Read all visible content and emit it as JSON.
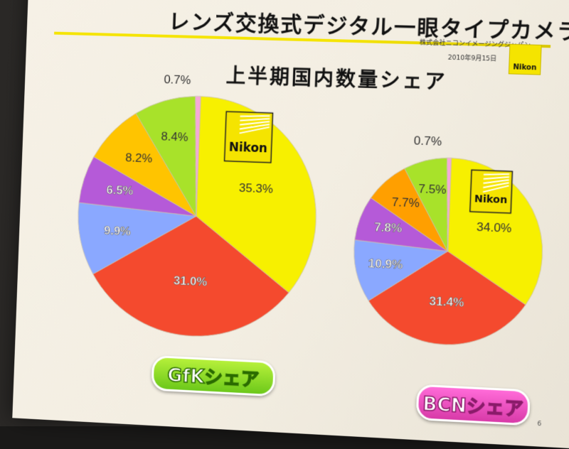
{
  "slide": {
    "title_line1": "レンズ交換式デジタル一眼タイプカメラ",
    "title_line2": "上半期国内数量シェア",
    "company": "株式会社ニコンイメージングジャパン",
    "date": "2010年9月15日",
    "corner_logo_text": "Nikon",
    "page_number": "6"
  },
  "colors": {
    "nikon": "#f7f000",
    "red": "#f44a2e",
    "blue": "#8aa8ff",
    "purple": "#b55ad8",
    "orange": "#ffc400",
    "orange_bcn": "#ff9f00",
    "green": "#a8e22a",
    "pink": "#f7a8d8"
  },
  "chart_data": [
    {
      "type": "pie",
      "title": "GfKシェア",
      "brand_label": "Nikon",
      "slices": [
        {
          "value": 35.3,
          "label": "35.3%",
          "color": "#f7f000"
        },
        {
          "value": 31.0,
          "label": "31.0%",
          "color": "#f44a2e"
        },
        {
          "value": 9.9,
          "label": "9.9%",
          "color": "#8aa8ff"
        },
        {
          "value": 6.5,
          "label": "6.5%",
          "color": "#b55ad8"
        },
        {
          "value": 8.2,
          "label": "8.2%",
          "color": "#ffc400"
        },
        {
          "value": 8.4,
          "label": "8.4%",
          "color": "#a8e22a"
        },
        {
          "value": 0.7,
          "label": "0.7%",
          "color": "#f7a8d8"
        }
      ]
    },
    {
      "type": "pie",
      "title": "BCNシェア",
      "brand_label": "Nikon",
      "slices": [
        {
          "value": 34.0,
          "label": "34.0%",
          "color": "#f7f000"
        },
        {
          "value": 31.4,
          "label": "31.4%",
          "color": "#f44a2e"
        },
        {
          "value": 10.9,
          "label": "10.9%",
          "color": "#8aa8ff"
        },
        {
          "value": 7.8,
          "label": "7.8%",
          "color": "#b55ad8"
        },
        {
          "value": 7.7,
          "label": "7.7%",
          "color": "#ff9f00"
        },
        {
          "value": 7.5,
          "label": "7.5%",
          "color": "#a8e22a"
        },
        {
          "value": 0.7,
          "label": "0.7%",
          "color": "#f7a8d8"
        }
      ]
    }
  ]
}
